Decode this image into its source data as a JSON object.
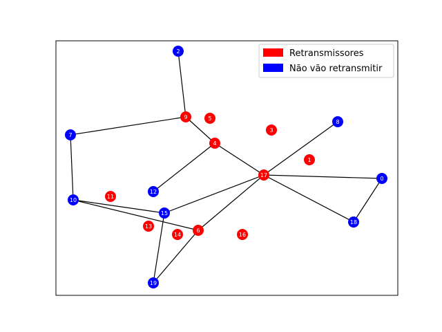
{
  "colors": {
    "retransmit": "#ff0000",
    "no_retransmit": "#0000ff",
    "edge": "#000000",
    "frame": "#000000"
  },
  "legend": {
    "placement": "top-right",
    "items": [
      {
        "label": "Retransmissores",
        "color": "#ff0000"
      },
      {
        "label": "Não vão retransmitir",
        "color": "#0000ff"
      }
    ]
  },
  "graph": {
    "nodes": [
      {
        "id": "0",
        "group": "no_retransmit"
      },
      {
        "id": "1",
        "group": "retransmit"
      },
      {
        "id": "2",
        "group": "no_retransmit"
      },
      {
        "id": "3",
        "group": "retransmit"
      },
      {
        "id": "4",
        "group": "retransmit"
      },
      {
        "id": "5",
        "group": "retransmit"
      },
      {
        "id": "6",
        "group": "retransmit"
      },
      {
        "id": "7",
        "group": "no_retransmit"
      },
      {
        "id": "8",
        "group": "no_retransmit"
      },
      {
        "id": "9",
        "group": "retransmit"
      },
      {
        "id": "10",
        "group": "no_retransmit"
      },
      {
        "id": "11",
        "group": "retransmit"
      },
      {
        "id": "12",
        "group": "no_retransmit"
      },
      {
        "id": "13",
        "group": "retransmit"
      },
      {
        "id": "14",
        "group": "retransmit"
      },
      {
        "id": "15",
        "group": "no_retransmit"
      },
      {
        "id": "16",
        "group": "retransmit"
      },
      {
        "id": "17",
        "group": "retransmit"
      },
      {
        "id": "18",
        "group": "no_retransmit"
      },
      {
        "id": "19",
        "group": "no_retransmit"
      }
    ],
    "edges": [
      [
        "2",
        "9"
      ],
      [
        "9",
        "7"
      ],
      [
        "9",
        "4"
      ],
      [
        "4",
        "17"
      ],
      [
        "4",
        "12"
      ],
      [
        "7",
        "10"
      ],
      [
        "10",
        "15"
      ],
      [
        "10",
        "6"
      ],
      [
        "15",
        "17"
      ],
      [
        "15",
        "19"
      ],
      [
        "6",
        "19"
      ],
      [
        "6",
        "17"
      ],
      [
        "17",
        "8"
      ],
      [
        "17",
        "0"
      ],
      [
        "17",
        "18"
      ],
      [
        "0",
        "18"
      ]
    ]
  }
}
